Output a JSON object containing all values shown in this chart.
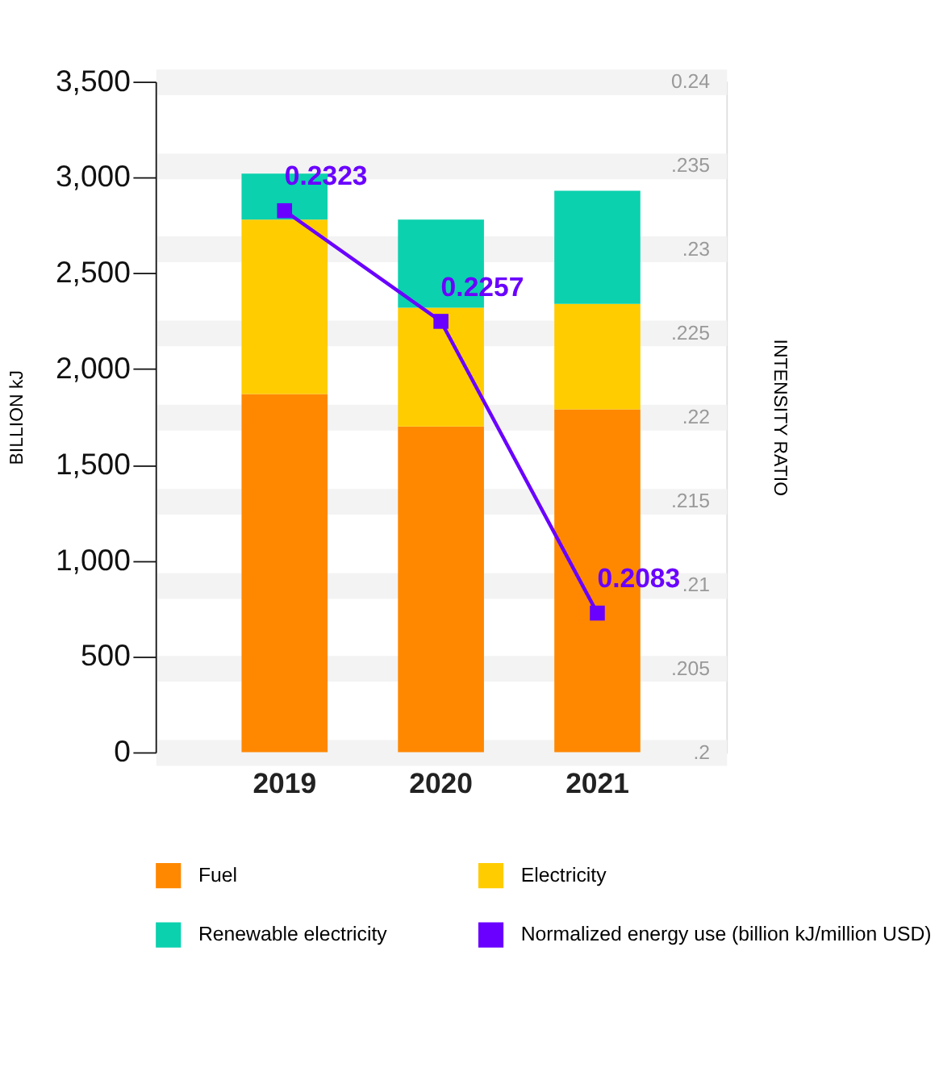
{
  "chart_data": {
    "type": "bar",
    "stacked": true,
    "categories": [
      "2019",
      "2020",
      "2021"
    ],
    "ylabel": "BILLION kJ",
    "y2label": "INTENSITY RATIO",
    "ylim": [
      0,
      3500
    ],
    "yticks": [
      0,
      500,
      {
        "value": 1000,
        "label": "1,000"
      },
      {
        "value": 1500,
        "label": "1,500"
      },
      {
        "value": 2000,
        "label": "2,000"
      },
      {
        "value": 2500,
        "label": "2,500"
      },
      {
        "value": 3000,
        "label": "3,000"
      },
      {
        "value": 3500,
        "label": "3,500"
      }
    ],
    "y2lim": [
      0.2,
      0.24
    ],
    "y2ticks": [
      {
        "value": 0.2,
        "label": ".2"
      },
      {
        "value": 0.205,
        "label": ".205"
      },
      {
        "value": 0.21,
        "label": ".21"
      },
      {
        "value": 0.215,
        "label": ".215"
      },
      {
        "value": 0.22,
        "label": ".22"
      },
      {
        "value": 0.225,
        "label": ".225"
      },
      {
        "value": 0.23,
        "label": ".23"
      },
      {
        "value": 0.235,
        "label": ".235"
      },
      {
        "value": 0.24,
        "label": "0.24"
      }
    ],
    "grid": "y2",
    "legend": "bottom",
    "series": [
      {
        "name": "Fuel",
        "color": "#ff8800",
        "values": [
          1870,
          1700,
          1790
        ]
      },
      {
        "name": "Electricity",
        "color": "#ffcc00",
        "values": [
          910,
          620,
          550
        ]
      },
      {
        "name": "Renewable electricity",
        "color": "#0bd1ae",
        "values": [
          240,
          460,
          590
        ]
      },
      {
        "name": "Normalized energy use (billion kJ/million USD)",
        "type": "line",
        "axis": "y2",
        "marker": "square",
        "color": "#6a00ff",
        "values": [
          0.2323,
          0.2257,
          0.2083
        ],
        "value_labels": [
          "0.2323",
          "0.2257",
          "0.2083"
        ]
      }
    ]
  }
}
